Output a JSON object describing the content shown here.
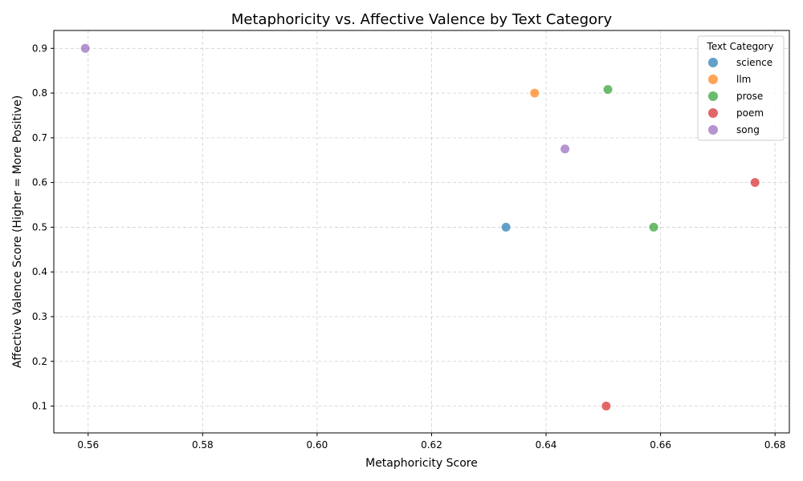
{
  "chart_data": {
    "type": "scatter",
    "title": "Metaphoricity vs. Affective Valence by Text Category",
    "xlabel": "Metaphoricity Score",
    "ylabel": "Affective Valence Score (Higher = More Positive)",
    "xlim": [
      0.554,
      0.6825
    ],
    "ylim": [
      0.04,
      0.94
    ],
    "x_ticks": [
      "0.56",
      "0.58",
      "0.60",
      "0.62",
      "0.64",
      "0.66",
      "0.68"
    ],
    "y_ticks": [
      "0.1",
      "0.2",
      "0.3",
      "0.4",
      "0.5",
      "0.6",
      "0.7",
      "0.8",
      "0.9"
    ],
    "grid": true,
    "legend": {
      "title": "Text Category",
      "placement": "top-right"
    },
    "series": [
      {
        "name": "science",
        "color": "#1f77b4",
        "points": [
          {
            "x": 0.633,
            "y": 0.5
          }
        ]
      },
      {
        "name": "llm",
        "color": "#ff7f0e",
        "points": [
          {
            "x": 0.638,
            "y": 0.8
          }
        ]
      },
      {
        "name": "prose",
        "color": "#2ca02c",
        "points": [
          {
            "x": 0.6508,
            "y": 0.808
          },
          {
            "x": 0.6588,
            "y": 0.5
          }
        ]
      },
      {
        "name": "poem",
        "color": "#d62728",
        "points": [
          {
            "x": 0.6765,
            "y": 0.6
          },
          {
            "x": 0.6505,
            "y": 0.1
          }
        ]
      },
      {
        "name": "song",
        "color": "#9467bd",
        "points": [
          {
            "x": 0.5595,
            "y": 0.9
          },
          {
            "x": 0.6433,
            "y": 0.675
          }
        ]
      }
    ]
  }
}
